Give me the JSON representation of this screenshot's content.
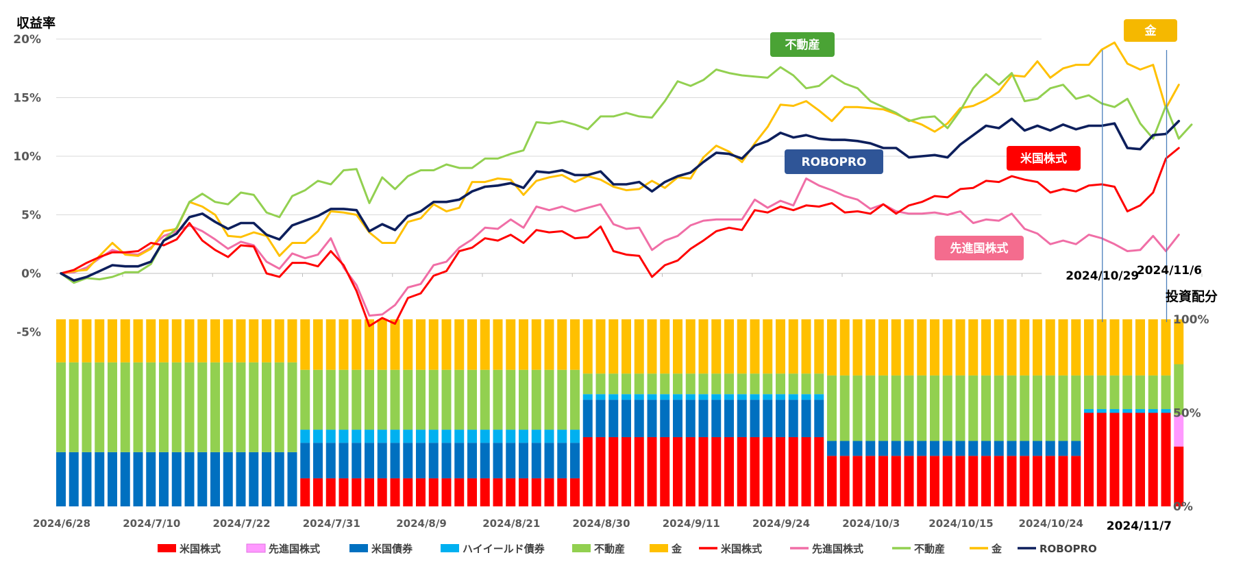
{
  "chart_data": {
    "type": "line + stacked-bar",
    "title": "収益率",
    "allocation_axis_title": "投資配分",
    "y_return_ticks": [
      {
        "value": 20,
        "label": "20%"
      },
      {
        "value": 15,
        "label": "15%"
      },
      {
        "value": 10,
        "label": "10%"
      },
      {
        "value": 5,
        "label": "5%"
      },
      {
        "value": 0,
        "label": "0%"
      },
      {
        "value": -5,
        "label": "-5%"
      }
    ],
    "y_return_range": [
      -5,
      20
    ],
    "y_alloc_ticks": [
      {
        "value": 100,
        "label": "100%"
      },
      {
        "value": 50,
        "label": "50%"
      },
      {
        "value": 0,
        "label": "0%"
      }
    ],
    "x_tick_labels": [
      {
        "index": 0,
        "label": "2024/6/28"
      },
      {
        "index": 7,
        "label": "2024/7/10"
      },
      {
        "index": 14,
        "label": "2024/7/22"
      },
      {
        "index": 21,
        "label": "2024/7/31"
      },
      {
        "index": 28,
        "label": "2024/8/9"
      },
      {
        "index": 35,
        "label": "2024/8/21"
      },
      {
        "index": 42,
        "label": "2024/8/30"
      },
      {
        "index": 49,
        "label": "2024/9/11"
      },
      {
        "index": 56,
        "label": "2024/9/24"
      },
      {
        "index": 63,
        "label": "2024/10/3"
      },
      {
        "index": 70,
        "label": "2024/10/15"
      },
      {
        "index": 77,
        "label": "2024/10/24"
      }
    ],
    "event_markers": [
      {
        "index": 81,
        "label": "2024/10/29"
      },
      {
        "index": 86,
        "label": "2024/11/6"
      }
    ],
    "final_date_label": "2024/11/7",
    "n_points": 88,
    "series": [
      {
        "name": "ROBOPRO",
        "color": "#0d1f5c",
        "values": [
          0,
          -0.6,
          -0.3,
          0.2,
          0.7,
          0.6,
          0.6,
          1.0,
          2.8,
          3.4,
          4.8,
          5.1,
          4.4,
          3.8,
          4.3,
          4.3,
          3.3,
          2.9,
          4.1,
          4.5,
          4.9,
          5.5,
          5.5,
          5.4,
          3.6,
          4.2,
          3.7,
          4.9,
          5.3,
          6.1,
          6.1,
          6.3,
          7.0,
          7.4,
          7.5,
          7.7,
          7.3,
          8.7,
          8.6,
          8.8,
          8.4,
          8.4,
          8.7,
          7.6,
          7.6,
          7.8,
          7.0,
          7.8,
          8.3,
          8.6,
          9.5,
          10.3,
          10.2,
          9.8,
          10.9,
          11.3,
          12.0,
          11.6,
          11.8,
          11.5,
          11.4,
          11.4,
          11.3,
          11.1,
          10.7,
          10.7,
          9.9,
          10.0,
          10.1,
          9.9,
          11.0,
          11.8,
          12.6,
          12.4,
          13.2,
          12.2,
          12.6,
          12.2,
          12.7,
          12.3,
          12.6,
          12.6,
          12.8,
          10.7,
          10.6,
          11.8,
          11.9,
          13.0
        ]
      },
      {
        "name": "米国株式",
        "color": "#ff0000",
        "values": [
          0,
          0.3,
          0.9,
          1.4,
          1.8,
          1.8,
          1.9,
          2.6,
          2.4,
          2.9,
          4.3,
          2.8,
          2.0,
          1.4,
          2.4,
          2.3,
          0.0,
          -0.3,
          0.9,
          0.9,
          0.6,
          1.9,
          0.7,
          -1.5,
          -4.5,
          -3.8,
          -4.3,
          -2.1,
          -1.7,
          -0.2,
          0.2,
          1.9,
          2.2,
          3.0,
          2.8,
          3.3,
          2.6,
          3.7,
          3.5,
          3.6,
          3.0,
          3.1,
          4.0,
          1.9,
          1.6,
          1.5,
          -0.3,
          0.7,
          1.1,
          2.1,
          2.8,
          3.6,
          3.9,
          3.7,
          5.4,
          5.2,
          5.7,
          5.4,
          5.8,
          5.7,
          6.0,
          5.2,
          5.3,
          5.1,
          5.9,
          5.1,
          5.8,
          6.1,
          6.6,
          6.5,
          7.2,
          7.3,
          7.9,
          7.8,
          8.3,
          8.0,
          7.8,
          6.9,
          7.2,
          7.0,
          7.5,
          7.6,
          7.4,
          5.3,
          5.8,
          6.9,
          9.8,
          10.7
        ]
      },
      {
        "name": "先進国株式",
        "color": "#f06ea6",
        "values": [
          0,
          0.1,
          0.5,
          1.3,
          2.0,
          1.7,
          1.6,
          2.2,
          3.2,
          3.6,
          4.1,
          3.6,
          2.9,
          2.1,
          2.7,
          2.4,
          1.0,
          0.4,
          1.7,
          1.3,
          1.6,
          3.0,
          0.5,
          -1.0,
          -3.6,
          -3.5,
          -2.7,
          -1.2,
          -0.9,
          0.7,
          1.0,
          2.2,
          2.9,
          3.9,
          3.8,
          4.6,
          3.9,
          5.7,
          5.4,
          5.7,
          5.3,
          5.6,
          5.9,
          4.2,
          3.8,
          3.9,
          2.0,
          2.8,
          3.2,
          4.1,
          4.5,
          4.6,
          4.6,
          4.6,
          6.3,
          5.6,
          6.2,
          5.8,
          8.1,
          7.5,
          7.1,
          6.6,
          6.3,
          5.5,
          5.9,
          5.3,
          5.1,
          5.1,
          5.2,
          5.0,
          5.3,
          4.3,
          4.6,
          4.5,
          5.1,
          3.8,
          3.4,
          2.5,
          2.8,
          2.5,
          3.3,
          3.0,
          2.5,
          1.9,
          2.0,
          3.2,
          1.9,
          3.3
        ]
      },
      {
        "name": "不動産",
        "color": "#92d050",
        "values": [
          0,
          -0.8,
          -0.4,
          -0.5,
          -0.3,
          0.1,
          0.1,
          0.8,
          2.8,
          3.9,
          6.1,
          6.8,
          6.1,
          5.9,
          6.9,
          6.7,
          5.2,
          4.8,
          6.6,
          7.1,
          7.9,
          7.6,
          8.8,
          8.9,
          6.0,
          8.2,
          7.2,
          8.3,
          8.8,
          8.8,
          9.3,
          9.0,
          9.0,
          9.8,
          9.8,
          10.2,
          10.5,
          12.9,
          12.8,
          13.0,
          12.7,
          12.3,
          13.4,
          13.4,
          13.7,
          13.4,
          13.3,
          14.7,
          16.4,
          16.0,
          16.5,
          17.4,
          17.1,
          16.9,
          16.8,
          16.7,
          17.6,
          16.9,
          15.8,
          16.0,
          16.9,
          16.2,
          15.8,
          14.7,
          14.2,
          13.7,
          13.0,
          13.3,
          13.4,
          12.4,
          13.9,
          15.8,
          17.0,
          16.1,
          17.1,
          14.7,
          14.9,
          15.8,
          16.1,
          14.9,
          15.2,
          14.5,
          14.2,
          14.9,
          12.8,
          11.5,
          14.3,
          11.5,
          12.7
        ]
      },
      {
        "name": "金",
        "color": "#ffc000",
        "values": [
          0,
          0.2,
          0.3,
          1.5,
          2.6,
          1.6,
          1.5,
          2.1,
          3.6,
          3.8,
          6.1,
          5.7,
          5.0,
          3.2,
          3.1,
          3.5,
          3.2,
          1.5,
          2.6,
          2.6,
          3.6,
          5.3,
          5.2,
          5.0,
          3.5,
          2.6,
          2.6,
          4.4,
          4.7,
          5.9,
          5.3,
          5.6,
          7.8,
          7.8,
          8.1,
          8.0,
          6.7,
          7.9,
          8.2,
          8.4,
          7.8,
          8.3,
          8.0,
          7.4,
          7.1,
          7.2,
          7.9,
          7.3,
          8.2,
          8.1,
          9.9,
          10.9,
          10.4,
          9.5,
          11.1,
          12.5,
          14.4,
          14.3,
          14.7,
          13.9,
          13.0,
          14.2,
          14.2,
          14.1,
          14.0,
          13.6,
          13.1,
          12.7,
          12.1,
          12.8,
          14.1,
          14.3,
          14.8,
          15.5,
          16.9,
          16.8,
          18.1,
          16.7,
          17.5,
          17.8,
          17.8,
          19.1,
          19.7,
          17.9,
          17.4,
          17.8,
          14.1,
          16.1
        ]
      }
    ],
    "allocation": {
      "categories": [
        "米国株式",
        "先進国株式",
        "米国債券",
        "ハイイールド債券",
        "不動産",
        "金"
      ],
      "colors": [
        "#ff0000",
        "#ff99ff",
        "#0070c0",
        "#00b0f0",
        "#92d050",
        "#ffc000"
      ],
      "segments": [
        {
          "from": 0,
          "to": 18,
          "values": [
            0,
            0,
            29,
            0,
            48,
            23
          ]
        },
        {
          "from": 19,
          "to": 40,
          "values": [
            15,
            0,
            19,
            7,
            32,
            27
          ]
        },
        {
          "from": 41,
          "to": 59,
          "values": [
            37,
            0,
            20,
            3,
            11,
            29
          ]
        },
        {
          "from": 60,
          "to": 79,
          "values": [
            27,
            0,
            8,
            0,
            35,
            30
          ]
        },
        {
          "from": 80,
          "to": 86,
          "values": [
            50,
            0,
            0,
            2,
            18,
            30
          ]
        },
        {
          "from": 87,
          "to": 87,
          "values": [
            32,
            17,
            0,
            0,
            27,
            24
          ]
        }
      ]
    },
    "callouts": [
      {
        "name": "不動産",
        "color": "#4aa335"
      },
      {
        "name": "金",
        "color": "#f5b800"
      },
      {
        "name": "ROBOPRO",
        "color": "#2f5597"
      },
      {
        "name": "米国株式",
        "color": "#ff0000"
      },
      {
        "name": "先進国株式",
        "color": "#f46c8e"
      }
    ],
    "legend": [
      {
        "label": "米国株式",
        "kind": "bar",
        "color": "#ff0000"
      },
      {
        "label": "先進国株式",
        "kind": "bar",
        "color": "#ff99ff"
      },
      {
        "label": "米国債券",
        "kind": "bar",
        "color": "#0070c0"
      },
      {
        "label": "ハイイールド債券",
        "kind": "bar",
        "color": "#00b0f0"
      },
      {
        "label": "不動産",
        "kind": "bar",
        "color": "#92d050"
      },
      {
        "label": "金",
        "kind": "bar",
        "color": "#ffc000"
      },
      {
        "label": "米国株式",
        "kind": "line",
        "color": "#ff0000"
      },
      {
        "label": "先進国株式",
        "kind": "line",
        "color": "#f06ea6"
      },
      {
        "label": "不動産",
        "kind": "line",
        "color": "#92d050"
      },
      {
        "label": "金",
        "kind": "line",
        "color": "#ffc000"
      },
      {
        "label": "ROBOPRO",
        "kind": "line",
        "color": "#0d1f5c"
      }
    ]
  }
}
